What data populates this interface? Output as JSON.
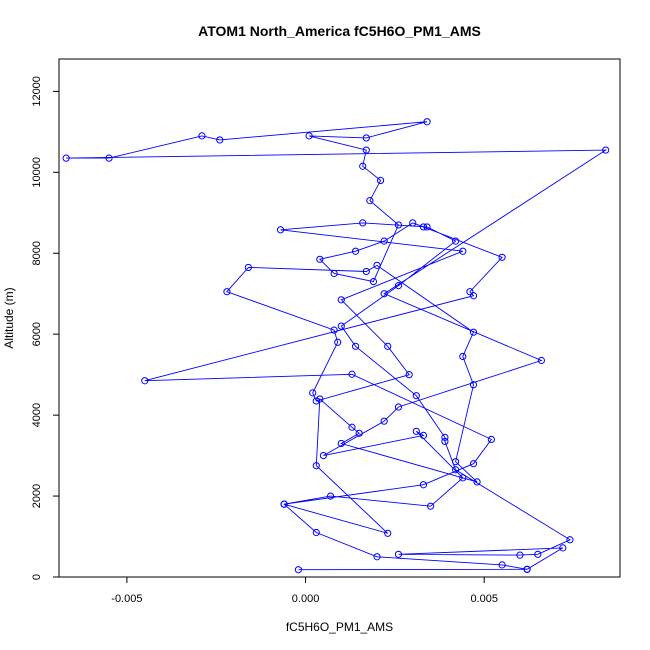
{
  "chart_data": {
    "type": "line",
    "title": "ATOM1 North_America fC5H6O_PM1_AMS",
    "xlabel": "fC5H6O_PM1_AMS",
    "ylabel": "Altitude (m)",
    "xlim": [
      -0.0069,
      0.0088
    ],
    "ylim": [
      0,
      12800
    ],
    "x_ticks": [
      -0.005,
      0.0,
      0.005
    ],
    "x_tick_labels": [
      "-0.005",
      "0.000",
      "0.005"
    ],
    "y_ticks": [
      0,
      2000,
      4000,
      6000,
      8000,
      10000,
      12000
    ],
    "y_tick_labels": [
      "0",
      "2000",
      "4000",
      "6000",
      "8000",
      "10000",
      "12000"
    ],
    "grid": false,
    "line_color": "#0000ff",
    "series": [
      {
        "name": "",
        "points": [
          [
            -0.0002,
            180
          ],
          [
            0.0062,
            190
          ],
          [
            0.0072,
            720
          ],
          [
            0.0026,
            560
          ],
          [
            0.006,
            540
          ],
          [
            0.0065,
            560
          ],
          [
            0.0074,
            920
          ],
          [
            0.0042,
            2650
          ],
          [
            0.0039,
            3350
          ],
          [
            0.0039,
            3450
          ],
          [
            0.0031,
            4480
          ],
          [
            0.0014,
            5700
          ],
          [
            0.001,
            6200
          ],
          [
            0.0026,
            7200
          ],
          [
            0.0042,
            8300
          ],
          [
            0.0034,
            8650
          ],
          [
            0.0016,
            8750
          ],
          [
            -0.0007,
            8580
          ],
          [
            0.0044,
            8050
          ],
          [
            0.001,
            6850
          ],
          [
            0.0023,
            5700
          ],
          [
            0.0029,
            5000
          ],
          [
            0.0003,
            4350
          ],
          [
            0.0002,
            4550
          ],
          [
            0.0009,
            5800
          ],
          [
            0.0008,
            6100
          ],
          [
            -0.0022,
            7050
          ],
          [
            -0.0016,
            7650
          ],
          [
            0.0017,
            7550
          ],
          [
            0.002,
            7700
          ],
          [
            0.0047,
            6050
          ],
          [
            0.0044,
            5450
          ],
          [
            0.0047,
            4750
          ],
          [
            0.0042,
            2850
          ],
          [
            0.0048,
            2350
          ],
          [
            0.001,
            3300
          ],
          [
            0.0015,
            3550
          ],
          [
            0.0013,
            3700
          ],
          [
            0.0004,
            4400
          ],
          [
            0.0003,
            2750
          ],
          [
            0.0023,
            1080
          ],
          [
            -0.0006,
            1800
          ],
          [
            0.0033,
            2280
          ],
          [
            0.0047,
            2800
          ],
          [
            0.0052,
            3400
          ],
          [
            0.0013,
            5010
          ],
          [
            -0.0045,
            4850
          ],
          [
            0.0047,
            6950
          ],
          [
            0.0046,
            7050
          ],
          [
            0.0055,
            7900
          ],
          [
            0.0033,
            8650
          ],
          [
            0.003,
            8750
          ],
          [
            0.0022,
            8300
          ],
          [
            0.0014,
            8050
          ],
          [
            0.0004,
            7850
          ],
          [
            0.0008,
            7500
          ],
          [
            0.0019,
            7300
          ],
          [
            0.0026,
            8700
          ],
          [
            0.0018,
            9300
          ],
          [
            0.0021,
            9800
          ],
          [
            0.0016,
            10150
          ],
          [
            0.0017,
            10550
          ],
          [
            0.0001,
            10900
          ],
          [
            0.0017,
            10850
          ],
          [
            0.0034,
            11250
          ],
          [
            -0.0024,
            10800
          ],
          [
            -0.0029,
            10900
          ],
          [
            -0.0055,
            10350
          ],
          [
            -0.0067,
            10350
          ],
          [
            0.0084,
            10550
          ],
          [
            0.0022,
            7000
          ],
          [
            0.0066,
            5350
          ],
          [
            0.0026,
            4200
          ],
          [
            0.0022,
            3850
          ],
          [
            0.0005,
            3000
          ],
          [
            0.0033,
            3500
          ],
          [
            0.0031,
            3600
          ],
          [
            0.0044,
            2450
          ],
          [
            0.0035,
            1750
          ],
          [
            0.0007,
            2000
          ],
          [
            -0.0006,
            1800
          ],
          [
            0.0003,
            1100
          ],
          [
            0.002,
            500
          ],
          [
            0.0055,
            300
          ],
          [
            0.0062,
            190
          ]
        ]
      }
    ]
  }
}
